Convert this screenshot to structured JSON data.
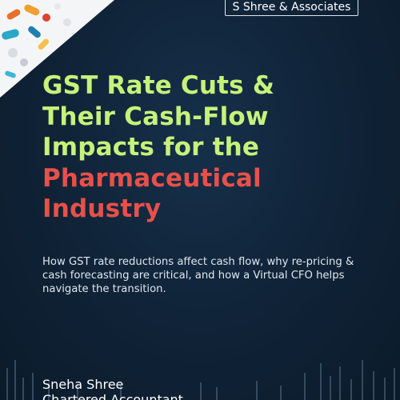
{
  "brand": {
    "name": "S Shree & Associates"
  },
  "headline": {
    "line1": "GST Rate Cuts &",
    "line2": "Their Cash-Flow",
    "line3": "Impacts for the",
    "line4": "Pharmaceutical",
    "line5": "Industry"
  },
  "subtitle": {
    "text": "How GST rate reductions affect cash flow, why re-pricing & cash forecasting are critical, and how a Virtual CFO helps navigate the transition."
  },
  "author": {
    "name": "Sneha Shree",
    "role": "Chartered Accountant"
  },
  "colors": {
    "background": "#0f2236",
    "headline_green": "#c6f27a",
    "headline_red": "#e8504a",
    "text_light": "#dfe7ef"
  }
}
